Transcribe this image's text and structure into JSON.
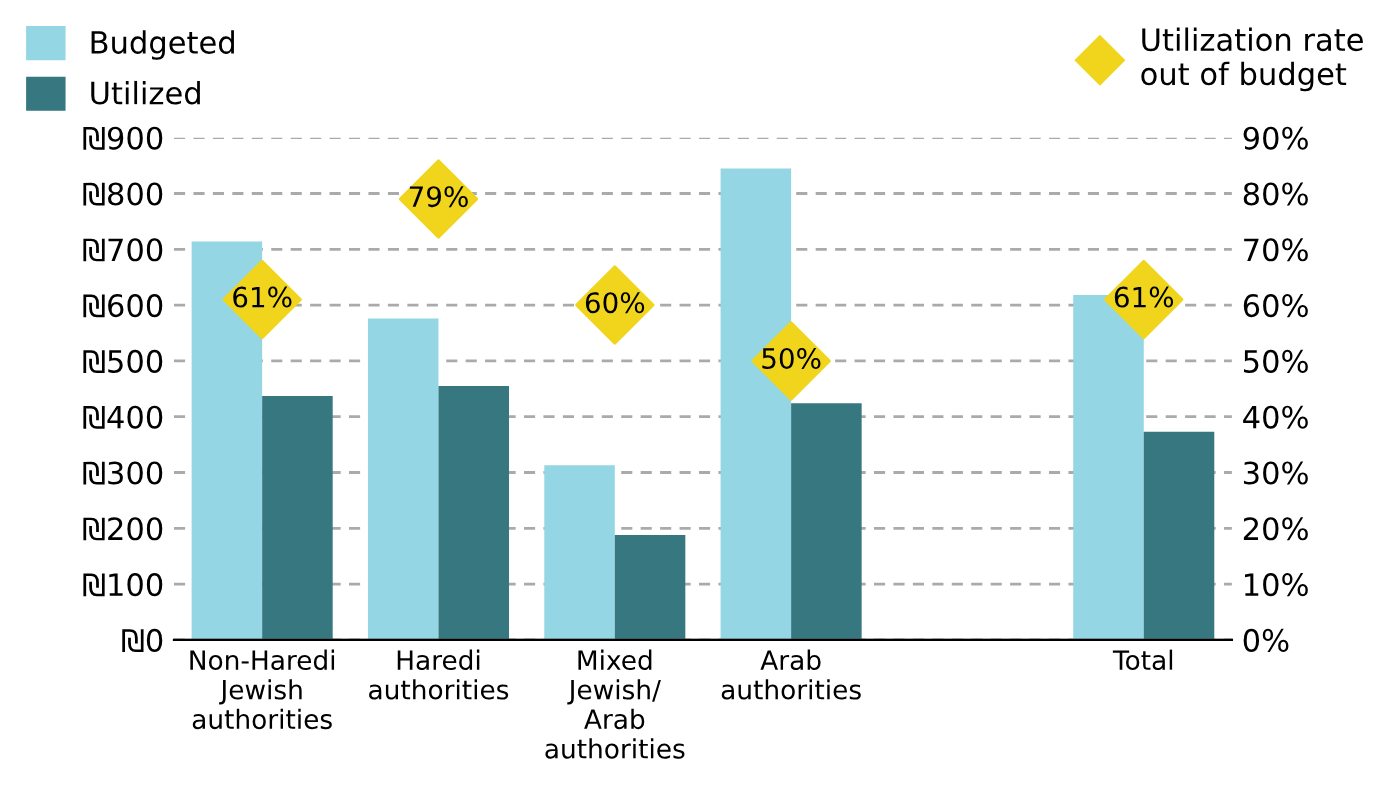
{
  "chart_data": {
    "type": "bar",
    "categories": [
      "Non-Haredi\nJewish\nauthorities",
      "Haredi\nauthorities",
      "Mixed\nJewish/\nArab\nauthorities",
      "Arab\nauthorities",
      null,
      "Total"
    ],
    "series": [
      {
        "name": "Budgeted",
        "color": "#94d6e3",
        "values": [
          714,
          576,
          313,
          845,
          null,
          618
        ]
      },
      {
        "name": "Utilized",
        "color": "#367780",
        "values": [
          437,
          455,
          188,
          424,
          null,
          373
        ]
      },
      {
        "name": "Utilization rate\nout of budget",
        "type": "scatter",
        "axis": "y2",
        "color": "#f0d51c",
        "marker": "diamond",
        "values": [
          61,
          79,
          60,
          50,
          null,
          61
        ],
        "value_labels": [
          "61%",
          "79%",
          "60%",
          "50%",
          null,
          "61%"
        ]
      }
    ],
    "ylim": [
      0,
      900
    ],
    "yticks": [
      {
        "value": 0,
        "label": "₪0"
      },
      {
        "value": 100,
        "label": "₪100"
      },
      {
        "value": 200,
        "label": "₪200"
      },
      {
        "value": 300,
        "label": "₪300"
      },
      {
        "value": 400,
        "label": "₪400"
      },
      {
        "value": 500,
        "label": "₪500"
      },
      {
        "value": 600,
        "label": "₪600"
      },
      {
        "value": 700,
        "label": "₪700"
      },
      {
        "value": 800,
        "label": "₪800"
      },
      {
        "value": 900,
        "label": "₪900"
      }
    ],
    "y2lim": [
      0,
      90
    ],
    "y2ticks": [
      {
        "value": 0,
        "label": "0%"
      },
      {
        "value": 10,
        "label": "10%"
      },
      {
        "value": 20,
        "label": "20%"
      },
      {
        "value": 30,
        "label": "30%"
      },
      {
        "value": 40,
        "label": "40%"
      },
      {
        "value": 50,
        "label": "50%"
      },
      {
        "value": 60,
        "label": "60%"
      },
      {
        "value": 70,
        "label": "70%"
      },
      {
        "value": 80,
        "label": "80%"
      },
      {
        "value": 90,
        "label": "90%"
      }
    ],
    "grid": "y",
    "legend": "top"
  }
}
